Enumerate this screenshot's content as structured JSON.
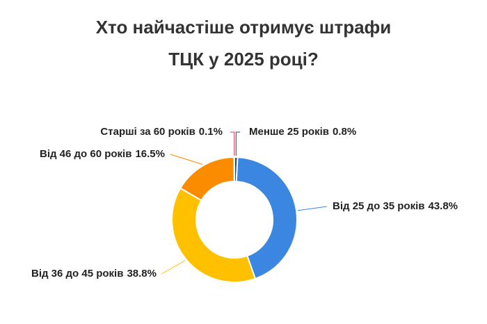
{
  "chart_data": {
    "type": "donut",
    "title_lines": [
      "Хто найчастіше отримує штрафи",
      "ТЦК у 2025 році?"
    ],
    "categories": [
      "Менше 25 років",
      "Від 25 до 35 років",
      "Від 36 до 45 років",
      "Від 46 до 60 років",
      "Старші за 60 років"
    ],
    "values": [
      0.8,
      43.8,
      38.8,
      16.5,
      0.1
    ],
    "value_labels": [
      "0.8%",
      "43.8%",
      "38.8%",
      "16.5%",
      "0.1%"
    ],
    "colors": [
      "#2b3f63",
      "#3a86e0",
      "#ffc000",
      "#fb8c00",
      "#e0355a"
    ]
  }
}
